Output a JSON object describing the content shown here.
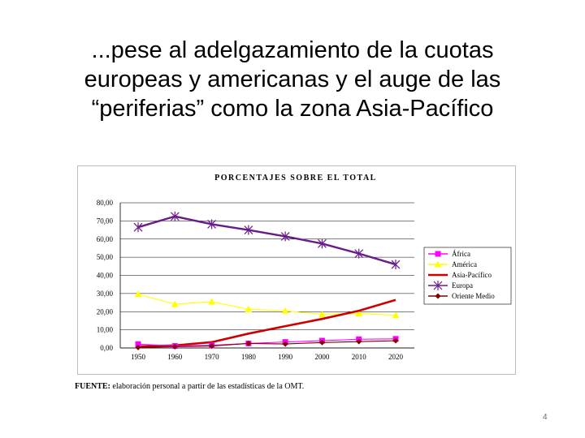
{
  "slide": {
    "title_lines": [
      "...pese al adelgazamiento de la cuotas",
      "europeas y americanas y el auge de las",
      "“periferias” como la zona Asia-Pacífico"
    ],
    "source_label": "FUENTE:",
    "source_text": "elaboración personal a partir de las estadísticas de la OMT.",
    "page_number": "4"
  },
  "chart_data": {
    "type": "line",
    "title": "PORCENTAJES SOBRE EL TOTAL",
    "x": [
      "1950",
      "1960",
      "1970",
      "1980",
      "1990",
      "2000",
      "2010",
      "2020"
    ],
    "ylim": [
      0,
      80
    ],
    "yticks": [
      "0,00",
      "10,00",
      "20,00",
      "30,00",
      "40,00",
      "50,00",
      "60,00",
      "70,00",
      "80,00"
    ],
    "grid": true,
    "legend_position": "right",
    "series": [
      {
        "name": "África",
        "color": "#ff00ff",
        "marker": "square",
        "values": [
          2.1,
          1.1,
          1.5,
          2.5,
          3.3,
          4.0,
          4.8,
          5.0
        ]
      },
      {
        "name": "América",
        "color": "#ffff00",
        "marker": "triangle",
        "values": [
          29.6,
          24.1,
          25.5,
          21.3,
          20.5,
          18.5,
          19.0,
          18.0
        ]
      },
      {
        "name": "Asia-Pacífico",
        "color": "#cc0000",
        "marker": "none",
        "values": [
          0.8,
          1.4,
          3.2,
          7.9,
          12.0,
          16.0,
          20.5,
          26.5
        ]
      },
      {
        "name": "Europa",
        "color": "#6a1b8a",
        "marker": "star",
        "values": [
          66.5,
          72.5,
          68.2,
          65.0,
          61.5,
          57.5,
          52.0,
          46.0
        ]
      },
      {
        "name": "Oriente Medio",
        "color": "#800000",
        "marker": "diamond",
        "values": [
          0.3,
          0.7,
          1.1,
          2.5,
          2.2,
          3.0,
          3.5,
          4.0
        ]
      }
    ]
  }
}
